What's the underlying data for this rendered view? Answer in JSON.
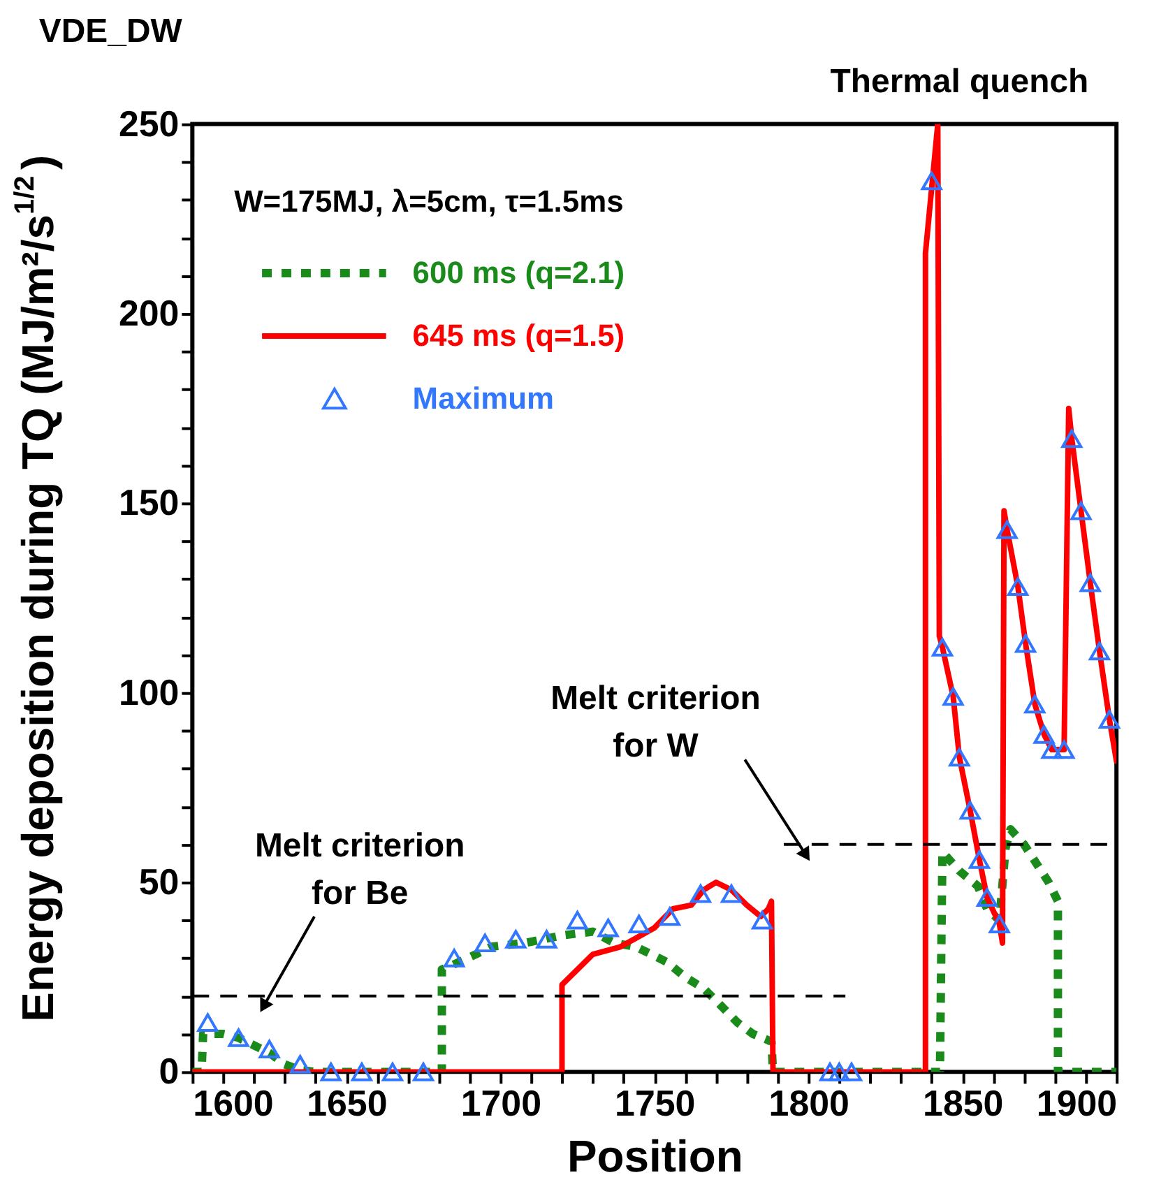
{
  "chart_data": {
    "type": "line",
    "title": "VDE_DW",
    "xlabel": "Position",
    "ylabel": "Energy deposition during TQ (MJ/m²/s$^{1/2}$)",
    "legend_title": "W=175MJ, λ=5cm, τ=1.5ms",
    "legend": "top left",
    "xlim": [
      1600,
      1900
    ],
    "ylim": [
      0,
      250
    ],
    "xticks": [
      1600,
      {
        "value": 1610,
        "label": null
      },
      {
        "value": 1620,
        "label": null
      },
      {
        "value": 1630,
        "label": null
      },
      {
        "value": 1640,
        "label": null
      },
      1650,
      {
        "value": 1660,
        "label": null
      },
      {
        "value": 1670,
        "label": null
      },
      {
        "value": 1680,
        "label": null
      },
      {
        "value": 1690,
        "label": null
      },
      1700,
      {
        "value": 1710,
        "label": null
      },
      {
        "value": 1720,
        "label": null
      },
      {
        "value": 1730,
        "label": null
      },
      {
        "value": 1740,
        "label": null
      },
      1750,
      {
        "value": 1760,
        "label": null
      },
      {
        "value": 1770,
        "label": null
      },
      {
        "value": 1780,
        "label": null
      },
      {
        "value": 1790,
        "label": null
      },
      1800,
      {
        "value": 1810,
        "label": null
      },
      {
        "value": 1820,
        "label": null
      },
      {
        "value": 1830,
        "label": null
      },
      {
        "value": 1840,
        "label": null
      },
      1850,
      {
        "value": 1860,
        "label": null
      },
      {
        "value": 1870,
        "label": null
      },
      {
        "value": 1880,
        "label": null
      },
      {
        "value": 1890,
        "label": null
      },
      1900
    ],
    "yticks": [
      0,
      {
        "value": 10,
        "label": null
      },
      {
        "value": 20,
        "label": null
      },
      {
        "value": 30,
        "label": null
      },
      {
        "value": 40,
        "label": null
      },
      50,
      {
        "value": 60,
        "label": null
      },
      {
        "value": 70,
        "label": null
      },
      {
        "value": 80,
        "label": null
      },
      {
        "value": 90,
        "label": null
      },
      100,
      {
        "value": 110,
        "label": null
      },
      {
        "value": 120,
        "label": null
      },
      {
        "value": 130,
        "label": null
      },
      {
        "value": 140,
        "label": null
      },
      150,
      {
        "value": 160,
        "label": null
      },
      {
        "value": 170,
        "label": null
      },
      {
        "value": 180,
        "label": null
      },
      {
        "value": 190,
        "label": null
      },
      200,
      {
        "value": 210,
        "label": null
      },
      {
        "value": 220,
        "label": null
      },
      {
        "value": 230,
        "label": null
      },
      {
        "value": 240,
        "label": null
      },
      250
    ],
    "grid": false,
    "series": [
      {
        "name": "600 ms (q=2.1)",
        "color": "#1a8a1a",
        "type": "line",
        "line_style": "dotted",
        "x": [
          1600,
          1603,
          1603.5,
          1605,
          1610,
          1615,
          1620,
          1625,
          1630,
          1635,
          1640,
          1681,
          1681,
          1684,
          1692,
          1697,
          1708,
          1720,
          1730,
          1737,
          1744,
          1749,
          1754,
          1760,
          1766,
          1771,
          1777,
          1782,
          1788,
          1788.5,
          1842.7,
          1843.5,
          1849,
          1855,
          1858,
          1862,
          1864,
          1865.6,
          1870,
          1874,
          1878,
          1881,
          1881,
          1900
        ],
        "values": [
          0,
          0,
          10,
          10,
          10,
          9,
          7,
          5,
          2,
          0.5,
          0,
          0,
          27,
          28,
          31,
          33,
          34,
          36,
          37,
          34,
          33,
          31,
          29,
          25,
          22,
          18,
          13,
          10,
          8,
          0,
          0,
          58,
          53,
          49,
          43,
          40,
          59,
          64,
          60,
          55,
          50,
          45,
          0,
          0
        ]
      },
      {
        "name": "645 ms (q=1.5)",
        "color": "#ff0000",
        "type": "line",
        "line_style": "solid",
        "x": [
          1600,
          1720,
          1720,
          1730,
          1739,
          1750,
          1756,
          1762,
          1766,
          1770,
          1775,
          1780,
          1784.5,
          1787,
          1788,
          1788.5,
          1838,
          1838,
          1842,
          1842.5,
          1843.5,
          1847,
          1849,
          1852.5,
          1855.5,
          1858,
          1862,
          1863,
          1863.5,
          1864.5,
          1868,
          1870.5,
          1873.5,
          1876.5,
          1879,
          1883,
          1884.5,
          1885.5,
          1888.5,
          1891.5,
          1894.5,
          1897.7,
          1900
        ],
        "values": [
          0,
          0,
          23,
          31,
          33,
          38,
          43,
          44,
          48,
          50,
          48,
          44,
          41,
          43,
          45,
          0,
          0,
          216,
          250,
          115,
          112,
          99,
          83,
          69,
          56,
          46,
          39,
          34,
          148,
          143,
          128,
          113,
          97,
          89,
          85,
          85,
          175,
          167,
          148,
          129,
          111,
          93,
          82
        ]
      },
      {
        "name": "Maximum",
        "color": "#3377ff",
        "type": "scatter",
        "marker": "triangle",
        "x": [
          1605,
          1615,
          1625,
          1635,
          1645,
          1655,
          1665,
          1675,
          1685,
          1695,
          1705,
          1715,
          1725,
          1735,
          1745,
          1755,
          1765,
          1775,
          1785,
          1807,
          1810,
          1814,
          1840,
          1843.5,
          1847,
          1849,
          1852.5,
          1855.5,
          1858,
          1862,
          1864.5,
          1868,
          1870.5,
          1873.5,
          1876.5,
          1879,
          1883,
          1885.5,
          1888.5,
          1891.5,
          1894.5,
          1897.7
        ],
        "values": [
          13,
          9,
          6,
          2,
          0,
          0,
          0,
          0,
          30,
          34,
          35,
          35,
          40,
          38,
          39,
          41,
          47,
          47,
          40,
          0,
          0,
          0,
          235,
          112,
          99,
          83,
          69,
          56,
          46,
          39,
          143,
          128,
          113,
          97,
          89,
          85,
          85,
          167,
          148,
          129,
          111,
          93
        ]
      },
      {
        "color": "#000000",
        "type": "line",
        "line_style": "dashed",
        "x": [
          1600,
          1812
        ],
        "values": [
          20,
          20
        ]
      },
      {
        "color": "#000000",
        "type": "line",
        "line_style": "dashed",
        "x": [
          1792,
          1900
        ],
        "values": [
          60,
          60
        ]
      }
    ],
    "annotations": [
      {
        "text": "Melt criterion\nfor Be",
        "x": 1625,
        "y": 20
      },
      {
        "text": "Melt criterion\nfor W",
        "x": 1797,
        "y": 60
      },
      "Thermal quench"
    ]
  }
}
